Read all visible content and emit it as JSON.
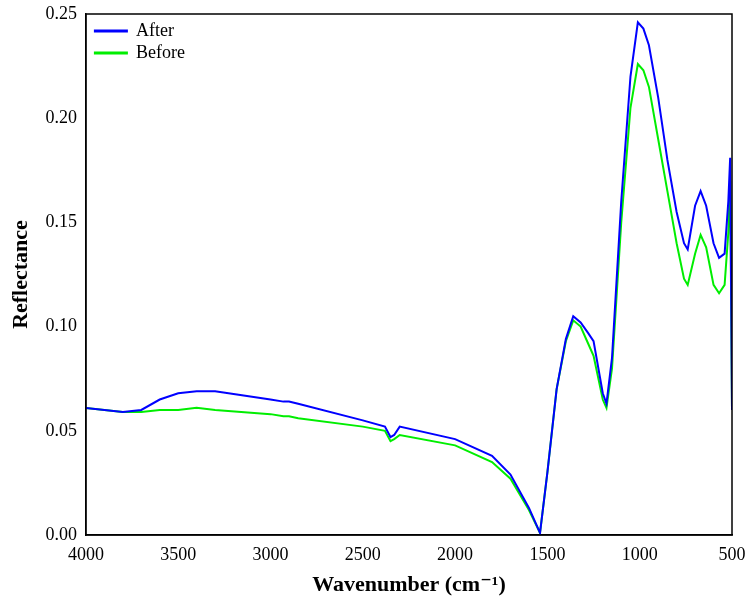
{
  "chart_data": {
    "type": "line",
    "x_label": "Wavenumber (cm⁻¹)",
    "y_label": "Reflectance",
    "x": [
      4000,
      3800,
      3700,
      3600,
      3500,
      3400,
      3300,
      3000,
      2930,
      2900,
      2850,
      2500,
      2380,
      2350,
      2330,
      2300,
      2000,
      1800,
      1700,
      1600,
      1540,
      1500,
      1450,
      1400,
      1360,
      1320,
      1280,
      1250,
      1200,
      1180,
      1150,
      1100,
      1050,
      1010,
      980,
      950,
      900,
      850,
      800,
      760,
      740,
      700,
      670,
      640,
      600,
      570,
      540,
      520,
      510,
      500
    ],
    "series": [
      {
        "name": "After",
        "color": "#0000ff",
        "values": [
          0.061,
          0.059,
          0.06,
          0.065,
          0.068,
          0.069,
          0.069,
          0.065,
          0.064,
          0.064,
          0.063,
          0.055,
          0.052,
          0.047,
          0.048,
          0.052,
          0.046,
          0.038,
          0.029,
          0.013,
          0.001,
          0.03,
          0.07,
          0.094,
          0.105,
          0.102,
          0.097,
          0.093,
          0.068,
          0.063,
          0.085,
          0.16,
          0.22,
          0.246,
          0.243,
          0.235,
          0.21,
          0.18,
          0.155,
          0.14,
          0.137,
          0.158,
          0.165,
          0.158,
          0.14,
          0.133,
          0.135,
          0.16,
          0.181,
          0.06
        ]
      },
      {
        "name": "Before",
        "color": "#00ee00",
        "values": [
          0.061,
          0.059,
          0.059,
          0.06,
          0.06,
          0.061,
          0.06,
          0.058,
          0.057,
          0.057,
          0.056,
          0.052,
          0.05,
          0.045,
          0.046,
          0.048,
          0.043,
          0.035,
          0.027,
          0.012,
          0.001,
          0.03,
          0.07,
          0.093,
          0.103,
          0.1,
          0.092,
          0.086,
          0.065,
          0.061,
          0.08,
          0.15,
          0.205,
          0.226,
          0.223,
          0.215,
          0.19,
          0.165,
          0.14,
          0.123,
          0.12,
          0.135,
          0.144,
          0.138,
          0.12,
          0.116,
          0.12,
          0.145,
          0.17,
          0.06
        ]
      }
    ],
    "xlim": [
      4000,
      500
    ],
    "xticks": [
      4000,
      3500,
      3000,
      2500,
      2000,
      1500,
      1000,
      500
    ],
    "ylim": [
      0,
      0.25
    ],
    "yticks": [
      {
        "value": 0,
        "label": "0.00"
      },
      {
        "value": 0.05,
        "label": "0.05"
      },
      {
        "value": 0.1,
        "label": "0.10"
      },
      {
        "value": 0.15,
        "label": "0.15"
      },
      {
        "value": 0.2,
        "label": "0.20"
      },
      {
        "value": 0.25,
        "label": "0.25"
      }
    ],
    "grid": false,
    "legend": "upper left"
  }
}
